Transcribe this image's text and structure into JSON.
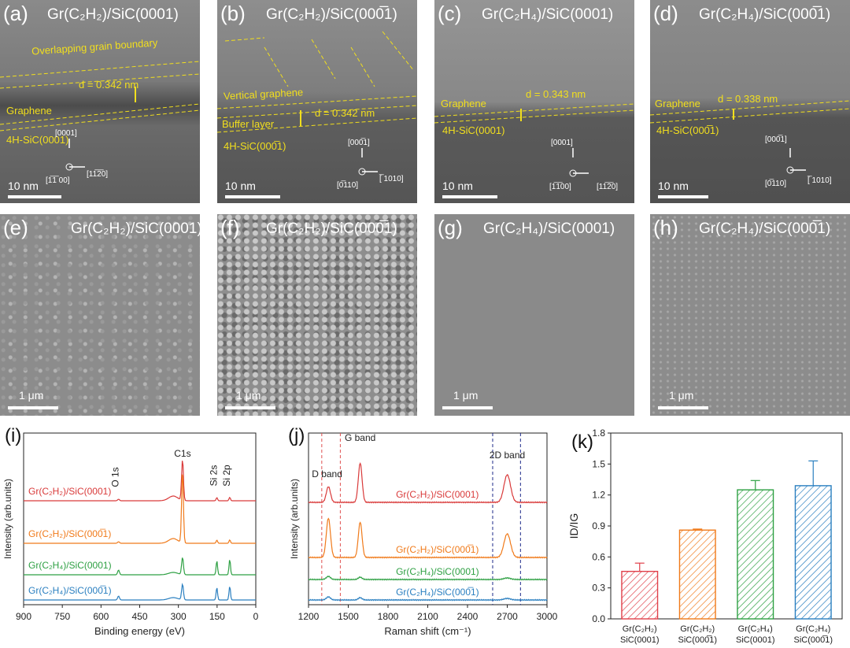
{
  "tem_panels": [
    {
      "label": "(a)",
      "title": "Gr(C₂H₂)/SiC(0001)",
      "scale": "10 nm",
      "annotations": [
        "Overlapping grain boundary",
        "d = 0.342 nm",
        "Graphene",
        "4H-SiC(0001)"
      ],
      "dirs": [
        "[0001]",
        "[1̅1̅ 00]",
        "[11̅2̅0]"
      ]
    },
    {
      "label": "(b)",
      "title": "Gr(C₂H₂)/SiC(000̅1)",
      "scale": "10 nm",
      "annotations": [
        "Vertical graphene",
        "Buffer layer",
        "d = 0.342 nm",
        "4H-SiC(000̅1)"
      ],
      "dirs": [
        "[000̅1]",
        "[0̅110]",
        "[̅ 1010]"
      ]
    },
    {
      "label": "(c)",
      "title": "Gr(C₂H₄)/SiC(0001)",
      "scale": "10 nm",
      "annotations": [
        "Graphene",
        "d = 0.343 nm",
        "4H-SiC(0001)"
      ],
      "dirs": [
        "[0001]",
        "[1̅1̅00]",
        "[11̅2̅0]"
      ]
    },
    {
      "label": "(d)",
      "title": "Gr(C₂H₄)/SiC(000̅1)",
      "scale": "10 nm",
      "annotations": [
        "Graphene",
        "d = 0.338 nm",
        "4H-SiC(000̅1)"
      ],
      "dirs": [
        "[000̅1]",
        "[0̅110]",
        "[̅ 1010]"
      ]
    }
  ],
  "sem_panels": [
    {
      "label": "(e)",
      "title": "Gr(C₂H₂)/SiC(0001)",
      "scale": "1 μm"
    },
    {
      "label": "(f)",
      "title": "Gr(C₂H₂)/SiC(000̅1)",
      "scale": "1 μm"
    },
    {
      "label": "(g)",
      "title": "Gr(C₂H₄)/SiC(0001)",
      "scale": "1 μm"
    },
    {
      "label": "(h)",
      "title": "Gr(C₂H₄)/SiC(000̅1)",
      "scale": "1 μm"
    }
  ],
  "chart_data": [
    {
      "id": "i",
      "type": "line",
      "label": "(i)",
      "xlabel": "Binding energy (eV)",
      "ylabel": "Intensity (arb.units)",
      "xlim": [
        900,
        0
      ],
      "xticks": [
        "900",
        "750",
        "600",
        "450",
        "300",
        "150",
        "0"
      ],
      "peaks": [
        "O 1s",
        "C1s",
        "Si 2s",
        "Si 2p"
      ],
      "series": [
        {
          "name": "Gr(C₂H₂)/SiC(0001)",
          "color": "#d93a3a"
        },
        {
          "name": "Gr(C₂H₂)/SiC(000̅1)",
          "color": "#f07a1a"
        },
        {
          "name": "Gr(C₂H₄)/SiC(0001)",
          "color": "#2ea043"
        },
        {
          "name": "Gr(C₂H₄)/SiC(000̅1)",
          "color": "#2a7fc0"
        }
      ]
    },
    {
      "id": "j",
      "type": "line",
      "label": "(j)",
      "xlabel": "Raman shift (cm⁻¹)",
      "ylabel": "Intensity (arb.units)",
      "xlim": [
        1200,
        3000
      ],
      "xticks": [
        "1200",
        "1500",
        "1800",
        "2100",
        "2400",
        "2700",
        "3000"
      ],
      "bands": [
        "D band",
        "G band",
        "2D band"
      ],
      "series": [
        {
          "name": "Gr(C₂H₂)/SiC(0001)",
          "color": "#d93a3a"
        },
        {
          "name": "Gr(C₂H₂)/SiC(000̅1)",
          "color": "#f07a1a"
        },
        {
          "name": "Gr(C₂H₄)/SiC(0001)",
          "color": "#2ea043"
        },
        {
          "name": "Gr(C₂H₄)/SiC(000̅1)",
          "color": "#2a7fc0"
        }
      ]
    },
    {
      "id": "k",
      "type": "bar",
      "label": "(k)",
      "ylabel": "ID/IG",
      "ylim": [
        0,
        1.8
      ],
      "yticks": [
        "0.0",
        "0.3",
        "0.6",
        "0.9",
        "1.2",
        "1.5",
        "1.8"
      ],
      "categories": [
        [
          "Gr(C₂H₂)",
          "SiC(0001)"
        ],
        [
          "Gr(C₂H₂)",
          "SiC(000̅1)"
        ],
        [
          "Gr(C₂H₄)",
          "SiC(0001)"
        ],
        [
          "Gr(C₂H₄)",
          "SiC(000̅1)"
        ]
      ],
      "values": [
        0.46,
        0.86,
        1.25,
        1.29
      ],
      "errors": [
        0.08,
        0.01,
        0.09,
        0.24
      ],
      "colors": [
        "#e0404a",
        "#f07a1a",
        "#2ea043",
        "#2a7fc0"
      ]
    }
  ]
}
